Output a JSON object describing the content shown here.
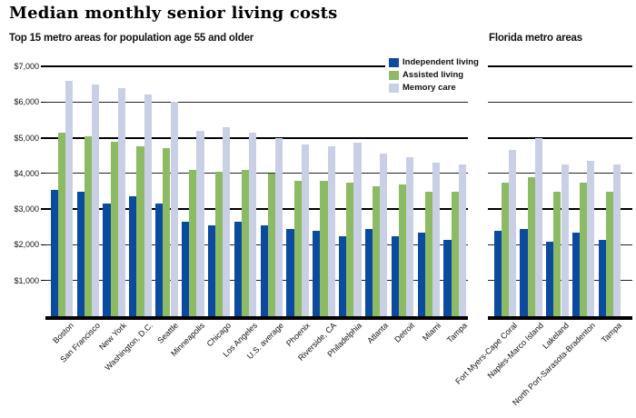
{
  "title": "Median monthly senior living costs",
  "charts_header": {
    "left": "Top 15 metro areas for population age 55 and older",
    "right": "Florida metro areas"
  },
  "legend": {
    "position": "top-right",
    "items": [
      {
        "label": "Independent living",
        "color": "#0b4a9f"
      },
      {
        "label": "Assisted living",
        "color": "#8cbb63"
      },
      {
        "label": "Memory care",
        "color": "#c9cfe5"
      }
    ]
  },
  "colors": {
    "independent_living": "#0b4a9f",
    "assisted_living": "#8cbb63",
    "memory_care": "#c9cfe5",
    "gridline": "#222222",
    "axis": "#000000"
  },
  "y_axis": {
    "ticks": [
      {
        "label": "$1,000",
        "value": 1000
      },
      {
        "label": "$2,000",
        "value": 2000
      },
      {
        "label": "$3,000",
        "value": 3000
      },
      {
        "label": "$4,000",
        "value": 4000
      },
      {
        "label": "$5,000",
        "value": 5000
      },
      {
        "label": "$6,000",
        "value": 6000
      },
      {
        "label": "$7,000",
        "value": 7000
      }
    ],
    "emphasized_gridlines": [
      3000,
      5000,
      7000
    ]
  },
  "chart_data": [
    {
      "type": "bar",
      "title": "Top 15 metro areas for population age 55 and older",
      "ylim": [
        0,
        7000
      ],
      "grid": true,
      "legend_position": "top-right",
      "categories": [
        "Boston",
        "San Francisco",
        "New York",
        "Washington, D.C.",
        "Seattle",
        "Minneapolis",
        "Chicago",
        "Los Angeles",
        "U.S. average",
        "Phoenix",
        "Riverside, CA",
        "Philadelphia",
        "Atlanta",
        "Detroit",
        "Miami",
        "Tampa"
      ],
      "series": [
        {
          "name": "Independent living",
          "color": "#0b4a9f",
          "values": [
            3550,
            3500,
            3150,
            3350,
            3150,
            2650,
            2550,
            2650,
            2550,
            2450,
            2400,
            2250,
            2450,
            2250,
            2350,
            2150
          ]
        },
        {
          "name": "Assisted living",
          "color": "#8cbb63",
          "values": [
            5150,
            5050,
            4900,
            4750,
            4700,
            4100,
            4050,
            4100,
            4000,
            3800,
            3800,
            3750,
            3650,
            3700,
            3500,
            3500
          ]
        },
        {
          "name": "Memory care",
          "color": "#c9cfe5",
          "values": [
            6600,
            6500,
            6400,
            6200,
            6000,
            5200,
            5300,
            5150,
            5000,
            4800,
            4750,
            4850,
            4550,
            4450,
            4300,
            4250
          ]
        }
      ]
    },
    {
      "type": "bar",
      "title": "Florida metro areas",
      "ylim": [
        0,
        7000
      ],
      "grid": true,
      "categories": [
        "Fort Myers-Cape Coral",
        "Naples-Marco Island",
        "Lakeland",
        "North Port-Sarasota-Bradenton",
        "Tampa"
      ],
      "series": [
        {
          "name": "Independent living",
          "color": "#0b4a9f",
          "values": [
            2400,
            2450,
            2100,
            2350,
            2150
          ]
        },
        {
          "name": "Assisted living",
          "color": "#8cbb63",
          "values": [
            3750,
            3900,
            3500,
            3750,
            3500
          ]
        },
        {
          "name": "Memory care",
          "color": "#c9cfe5",
          "values": [
            4650,
            5000,
            4250,
            4350,
            4250
          ]
        }
      ]
    }
  ]
}
